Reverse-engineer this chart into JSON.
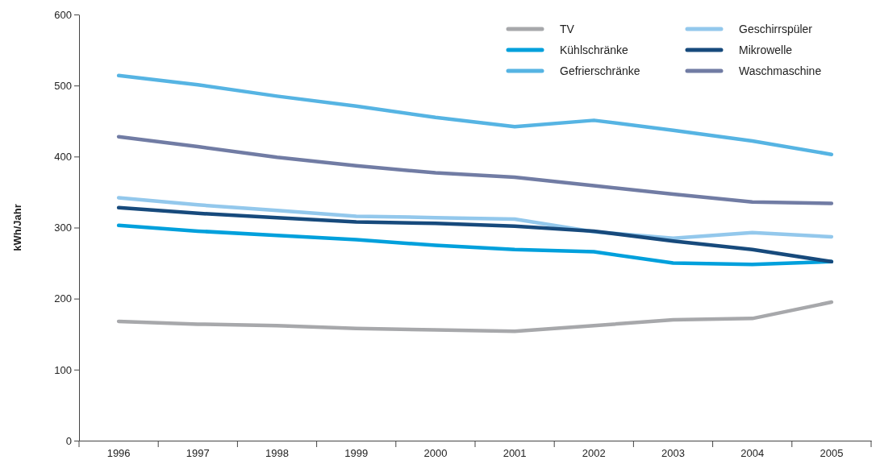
{
  "chart_data": {
    "type": "line",
    "ylabel": "kWh/Jahr",
    "categories": [
      "1996",
      "1997",
      "1998",
      "1999",
      "2000",
      "2001",
      "2002",
      "2003",
      "2004",
      "2005"
    ],
    "ylim": [
      0,
      600
    ],
    "yticks": [
      0,
      100,
      200,
      300,
      400,
      500,
      600
    ],
    "grid": false,
    "legend": "top right",
    "marker": "none",
    "line_style": "solid",
    "series": [
      {
        "name": "TV",
        "color": "#a7a8ab",
        "values": [
          168,
          164,
          162,
          158,
          156,
          154,
          162,
          170,
          172,
          195
        ]
      },
      {
        "name": "Kühlschränke",
        "color": "#00a0dc",
        "values": [
          303,
          295,
          289,
          283,
          275,
          269,
          266,
          250,
          248,
          252
        ]
      },
      {
        "name": "Gefrierschränke",
        "color": "#56b4e3",
        "values": [
          514,
          501,
          485,
          471,
          455,
          442,
          451,
          437,
          422,
          403
        ]
      },
      {
        "name": "Geschirrspüler",
        "color": "#93c8ec",
        "values": [
          342,
          332,
          324,
          316,
          314,
          312,
          294,
          285,
          293,
          287
        ]
      },
      {
        "name": "Mikrowelle",
        "color": "#174a7c",
        "values": [
          328,
          320,
          314,
          308,
          306,
          302,
          295,
          281,
          269,
          252
        ]
      },
      {
        "name": "Waschmaschine",
        "color": "#717ca4",
        "values": [
          428,
          414,
          399,
          387,
          377,
          371,
          359,
          347,
          336,
          334
        ]
      }
    ]
  }
}
